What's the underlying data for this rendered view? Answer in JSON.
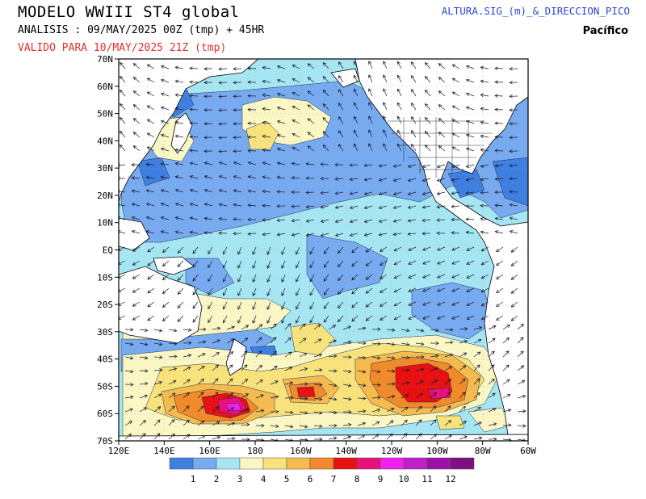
{
  "header": {
    "title": "MODELO WWIII ST4 global",
    "analysis": "ANALISIS : 09/MAY/2025 00Z  (tmp) + 45HR",
    "valid": "VALIDO PARA  10/MAY/2025 21Z  (tmp)",
    "product": "ALTURA.SIG_(m)_&_DIRECCION_PICO",
    "region": "Pacífico"
  },
  "map": {
    "lat_labels": [
      "70N",
      "60N",
      "50N",
      "40N",
      "30N",
      "20N",
      "10N",
      "EQ",
      "10S",
      "20S",
      "30S",
      "40S",
      "50S",
      "60S",
      "70S"
    ],
    "lon_labels": [
      "120E",
      "140E",
      "160E",
      "180",
      "160W",
      "140W",
      "120W",
      "100W",
      "80W",
      "60W"
    ]
  },
  "legend": {
    "values": [
      "1",
      "2",
      "3",
      "4",
      "5",
      "6",
      "7",
      "8",
      "9",
      "10",
      "11",
      "12"
    ],
    "colors": [
      "#3f7fe0",
      "#78aaf0",
      "#a6e6f2",
      "#fbf7c4",
      "#f7e27c",
      "#f5bb4e",
      "#f08a2a",
      "#e81010",
      "#e8107a",
      "#f020f0",
      "#c020c8",
      "#9c10a6",
      "#7c1080"
    ]
  },
  "colors": {
    "land": "#ffffff",
    "border": "#000000",
    "arrow": "#1a1a2e"
  }
}
